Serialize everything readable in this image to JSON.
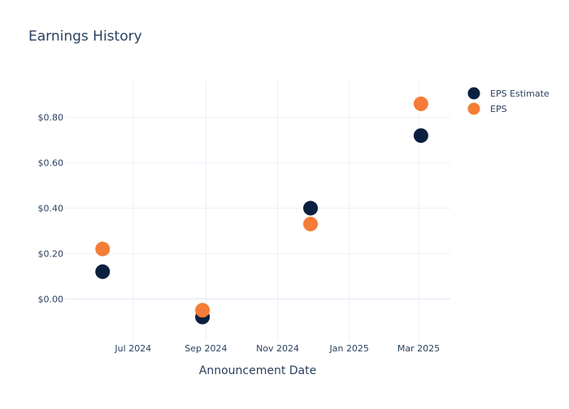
{
  "chart_data": {
    "type": "scatter",
    "title": "Earnings History",
    "xlabel": "Announcement Date",
    "ylabel": "",
    "x_ticks": [
      {
        "date": "2024-07-01",
        "label": "Jul 2024"
      },
      {
        "date": "2024-09-01",
        "label": "Sep 2024"
      },
      {
        "date": "2024-11-01",
        "label": "Nov 2024"
      },
      {
        "date": "2025-01-01",
        "label": "Jan 2025"
      },
      {
        "date": "2025-03-01",
        "label": "Mar 2025"
      }
    ],
    "xlim": [
      "2024-05-04",
      "2025-03-28"
    ],
    "y_ticks": [
      {
        "value": 0.0,
        "label": "$0.00"
      },
      {
        "value": 0.2,
        "label": "$0.20"
      },
      {
        "value": 0.4,
        "label": "$0.40"
      },
      {
        "value": 0.6,
        "label": "$0.60"
      },
      {
        "value": 0.8,
        "label": "$0.80"
      }
    ],
    "ylim": [
      -0.185,
      0.96
    ],
    "grid": true,
    "legend_position": "top-right",
    "series": [
      {
        "name": "EPS Estimate",
        "color": "#0b1f3f",
        "points": [
          {
            "x": "2024-06-05",
            "y": 0.12
          },
          {
            "x": "2024-08-29",
            "y": -0.08
          },
          {
            "x": "2024-11-29",
            "y": 0.4
          },
          {
            "x": "2025-03-03",
            "y": 0.72
          }
        ]
      },
      {
        "name": "EPS",
        "color": "#f47c36",
        "points": [
          {
            "x": "2024-06-05",
            "y": 0.22
          },
          {
            "x": "2024-08-29",
            "y": -0.05
          },
          {
            "x": "2024-11-29",
            "y": 0.33
          },
          {
            "x": "2025-03-03",
            "y": 0.86
          }
        ]
      }
    ]
  }
}
